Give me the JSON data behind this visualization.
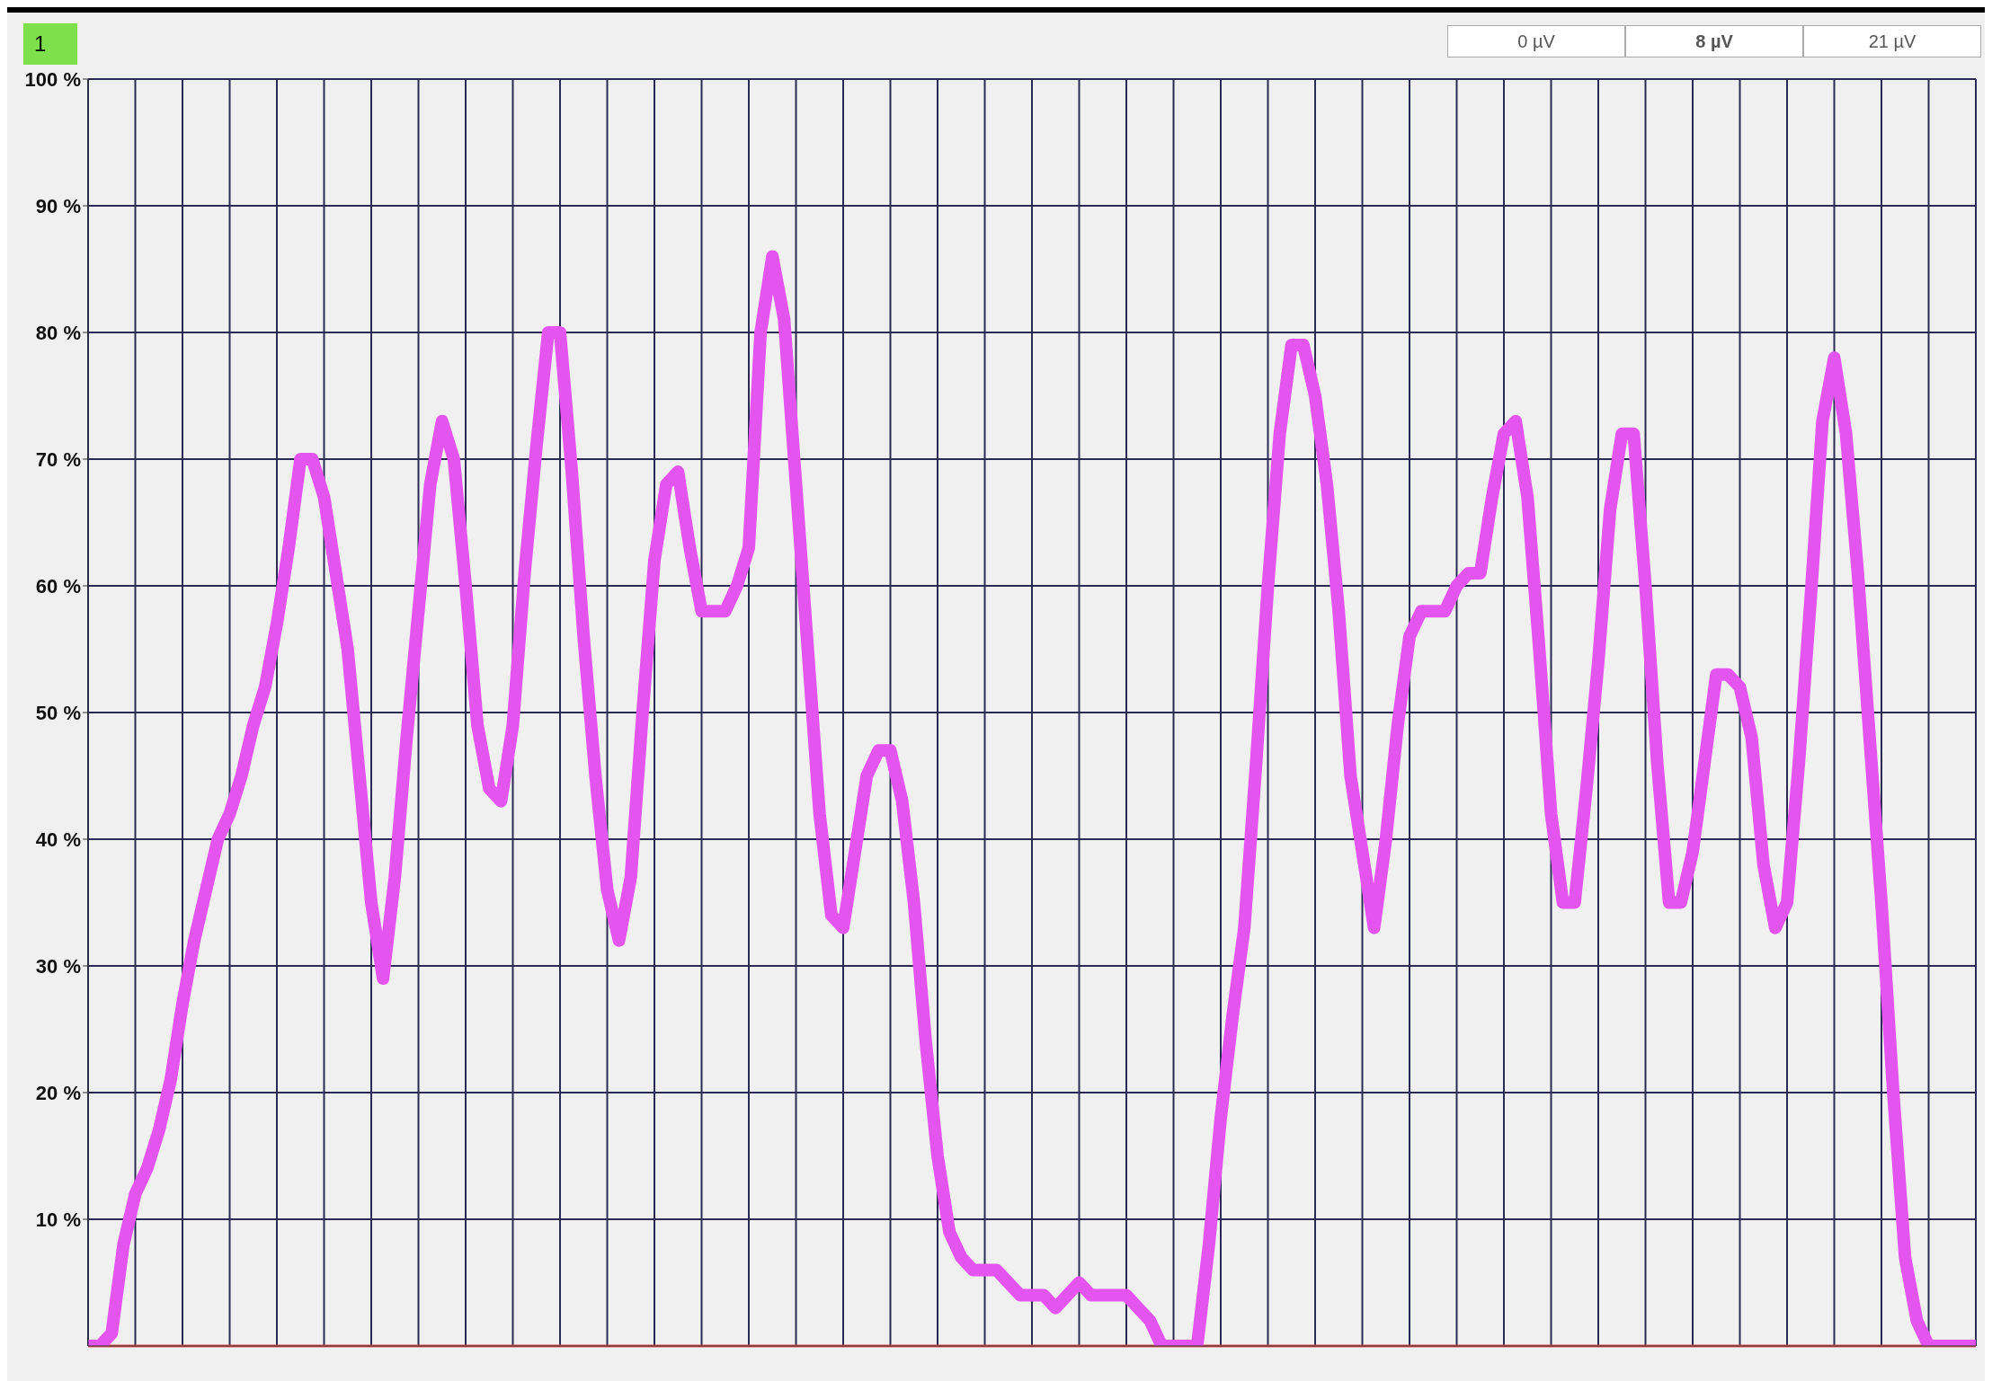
{
  "chart_data": {
    "type": "line",
    "annotations": [
      "1",
      "0 µV",
      "8 µV",
      "21 µV"
    ],
    "categories": [
      null,
      null,
      null,
      null,
      null,
      null,
      null,
      null,
      null,
      null,
      null,
      null,
      null,
      null,
      null,
      null,
      null,
      null,
      null,
      null,
      null,
      null,
      null,
      null,
      null,
      null,
      null,
      null,
      null,
      null,
      null,
      null,
      null,
      null,
      null,
      null,
      null,
      null,
      null,
      null,
      null,
      null,
      null,
      null,
      null,
      null,
      null,
      null,
      null,
      null,
      null,
      null,
      null,
      null,
      null,
      null,
      null,
      null,
      null,
      null,
      null,
      null,
      null,
      null,
      null,
      null,
      null,
      null,
      null,
      null,
      null,
      null,
      null,
      null,
      null,
      null,
      null,
      null,
      null,
      null,
      null,
      null,
      null,
      null,
      null,
      null,
      null,
      null,
      null,
      null,
      null,
      null,
      null,
      null,
      null,
      null,
      null,
      null,
      null,
      null,
      null,
      null,
      null,
      null,
      null,
      null,
      null,
      null,
      null,
      null,
      null,
      null,
      null,
      null,
      null,
      null,
      null,
      null,
      null,
      null,
      null,
      null,
      null,
      null,
      null,
      null,
      null,
      null,
      null,
      null,
      null,
      null,
      null,
      null,
      null,
      null,
      null,
      null,
      null,
      null,
      null,
      null,
      null,
      null,
      null,
      null,
      null,
      null,
      null,
      null,
      null,
      null,
      null,
      null,
      null,
      null,
      null,
      null,
      null,
      null,
      null
    ],
    "ylim": [
      0,
      100
    ],
    "yticks": [
      {
        "value": 10,
        "label": "10 %"
      },
      {
        "value": 20,
        "label": "20 %"
      },
      {
        "value": 30,
        "label": "30 %"
      },
      {
        "value": 40,
        "label": "40 %"
      },
      {
        "value": 50,
        "label": "50 %"
      },
      {
        "value": 60,
        "label": "60 %"
      },
      {
        "value": 70,
        "label": "70 %"
      },
      {
        "value": 80,
        "label": "80 %"
      },
      {
        "value": 90,
        "label": "90 %"
      },
      {
        "value": 100,
        "label": "100 %"
      }
    ],
    "grid": true,
    "marker": "none",
    "line_style": "solid",
    "ref_lines": [
      {
        "axis": "y",
        "value": 0,
        "color": "#e05050"
      }
    ],
    "series": [
      {
        "color": "#e455ef",
        "values": [
          0,
          0,
          1,
          8,
          12,
          14,
          17,
          21,
          27,
          32,
          36,
          40,
          42,
          45,
          49,
          52,
          57,
          63,
          70,
          70,
          67,
          61,
          55,
          45,
          35,
          29,
          37,
          48,
          58,
          68,
          73,
          70,
          60,
          49,
          44,
          43,
          49,
          61,
          71,
          80,
          80,
          69,
          56,
          45,
          36,
          32,
          37,
          50,
          62,
          68,
          69,
          63,
          58,
          58,
          58,
          60,
          63,
          80,
          86,
          81,
          68,
          55,
          42,
          34,
          33,
          39,
          45,
          47,
          47,
          43,
          35,
          24,
          15,
          9,
          7,
          6,
          6,
          6,
          5,
          4,
          4,
          4,
          3,
          4,
          5,
          4,
          4,
          4,
          4,
          3,
          2,
          0,
          0,
          0,
          0,
          8,
          18,
          26,
          33,
          46,
          60,
          72,
          79,
          79,
          75,
          68,
          58,
          45,
          39,
          33,
          40,
          49,
          56,
          58,
          58,
          58,
          60,
          61,
          61,
          67,
          72,
          73,
          67,
          55,
          42,
          35,
          35,
          44,
          54,
          66,
          72,
          72,
          60,
          46,
          35,
          35,
          39,
          46,
          53,
          53,
          52,
          48,
          38,
          33,
          35,
          46,
          59,
          73,
          78,
          72,
          61,
          48,
          35,
          20,
          7,
          2,
          0,
          0,
          0,
          0,
          0
        ]
      }
    ]
  }
}
